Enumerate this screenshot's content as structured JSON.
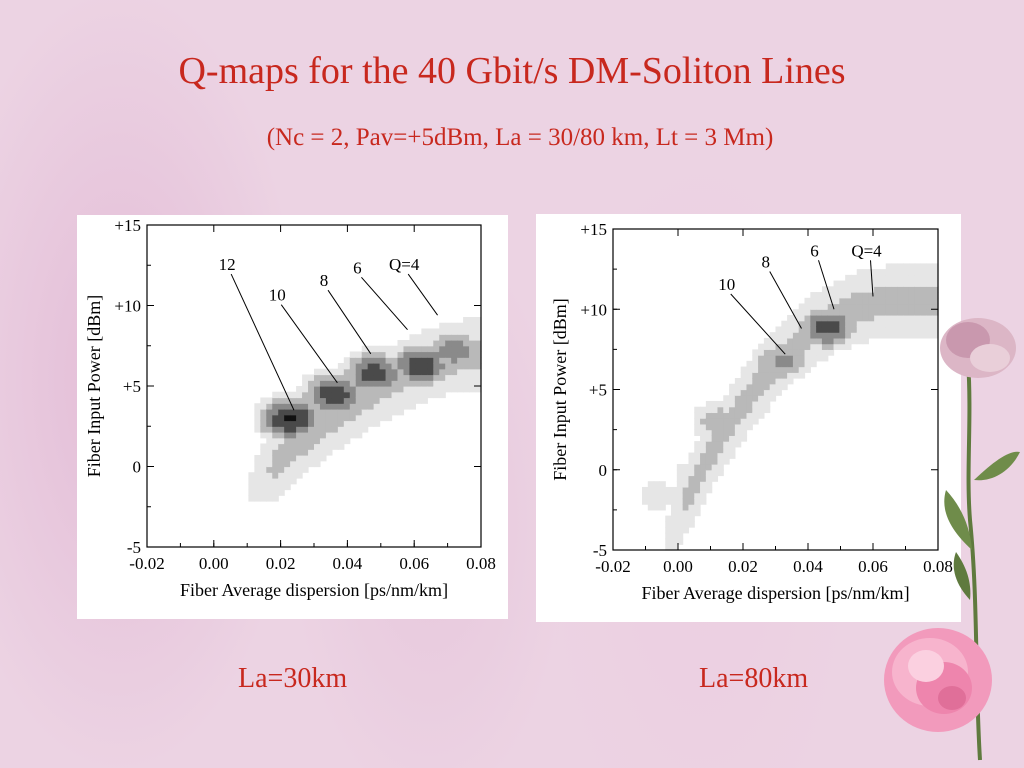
{
  "slide": {
    "title": "Q-maps for the 40 Gbit/s DM-Soliton Lines",
    "subtitle": "(Nc = 2, Pav=+5dBm, La = 30/80 km, Lt = 3 Mm)",
    "captions": [
      "La=30km",
      "La=80km"
    ]
  },
  "colors": {
    "text_accent": "#c8281e",
    "background": "#ecd3e3",
    "q_levels": [
      "#e6e6e6",
      "#b9b9b9",
      "#8a8a8a",
      "#4a4a4a",
      "#111111"
    ]
  },
  "decoration": {
    "flower_icon": "carnation-flower-icon"
  },
  "chart_data": [
    {
      "type": "heatmap",
      "title": "",
      "caption": "La=30km",
      "xlabel": "Fiber Average dispersion [ps/nm/km]",
      "ylabel": "Fiber Input Power [dBm]",
      "xlim": [
        -0.02,
        0.08
      ],
      "ylim": [
        -5,
        15
      ],
      "x_ticks": [
        "-0.02",
        "0.00",
        "0.02",
        "0.04",
        "0.06",
        "0.08"
      ],
      "y_ticks": [
        "-5",
        "0",
        "+5",
        "+10",
        "+15"
      ],
      "contour_levels": [
        4,
        6,
        8,
        10,
        12
      ],
      "contour_labels": [
        {
          "text": "12",
          "x": 0.024,
          "y": 3.5,
          "label_x": 0.004,
          "label_y": 12.2
        },
        {
          "text": "10",
          "x": 0.037,
          "y": 5.2,
          "label_x": 0.019,
          "label_y": 10.3
        },
        {
          "text": "8",
          "x": 0.047,
          "y": 7.0,
          "label_x": 0.033,
          "label_y": 11.2
        },
        {
          "text": "6",
          "x": 0.058,
          "y": 8.5,
          "label_x": 0.043,
          "label_y": 12.0
        },
        {
          "text": "Q=4",
          "x": 0.067,
          "y": 9.4,
          "label_x": 0.057,
          "label_y": 12.2
        }
      ],
      "ridge": {
        "x0": 0.01,
        "y0": -1.5,
        "x1": 0.08,
        "y1": 7.0,
        "curvature": 0.35
      },
      "peaks": [
        {
          "x": 0.023,
          "y": 3.0,
          "q": 12.5
        },
        {
          "x": 0.036,
          "y": 4.5,
          "q": 11.5
        },
        {
          "x": 0.048,
          "y": 5.8,
          "q": 11.2
        },
        {
          "x": 0.062,
          "y": 6.3,
          "q": 11.4
        },
        {
          "x": 0.072,
          "y": 7.2,
          "q": 9.2
        }
      ]
    },
    {
      "type": "heatmap",
      "title": "",
      "caption": "La=80km",
      "xlabel": "Fiber Average dispersion [ps/nm/km]",
      "ylabel": "Fiber Input Power [dBm]",
      "xlim": [
        -0.02,
        0.08
      ],
      "ylim": [
        -5,
        15
      ],
      "x_ticks": [
        "-0.02",
        "0.00",
        "0.02",
        "0.04",
        "0.06",
        "0.08"
      ],
      "y_ticks": [
        "-5",
        "0",
        "+5",
        "+10",
        "+15"
      ],
      "contour_levels": [
        4,
        6,
        8,
        10
      ],
      "contour_labels": [
        {
          "text": "10",
          "x": 0.033,
          "y": 7.2,
          "label_x": 0.015,
          "label_y": 11.2
        },
        {
          "text": "8",
          "x": 0.038,
          "y": 8.8,
          "label_x": 0.027,
          "label_y": 12.6
        },
        {
          "text": "6",
          "x": 0.048,
          "y": 10.0,
          "label_x": 0.042,
          "label_y": 13.3
        },
        {
          "text": "Q=4",
          "x": 0.06,
          "y": 10.8,
          "label_x": 0.058,
          "label_y": 13.3
        }
      ],
      "ridge": {
        "x0": -0.005,
        "y0": -5.0,
        "x1": 0.068,
        "y1": 10.5,
        "curvature": 0.55
      },
      "peaks": [
        {
          "x": 0.046,
          "y": 8.9,
          "q": 11.0
        },
        {
          "x": 0.032,
          "y": 6.8,
          "q": 8.6
        },
        {
          "x": 0.013,
          "y": 3.0,
          "q": 7.6
        },
        {
          "x": -0.006,
          "y": -1.6,
          "q": 5.2
        },
        {
          "x": 0.003,
          "y": -0.2,
          "q": 4.6
        }
      ]
    }
  ]
}
